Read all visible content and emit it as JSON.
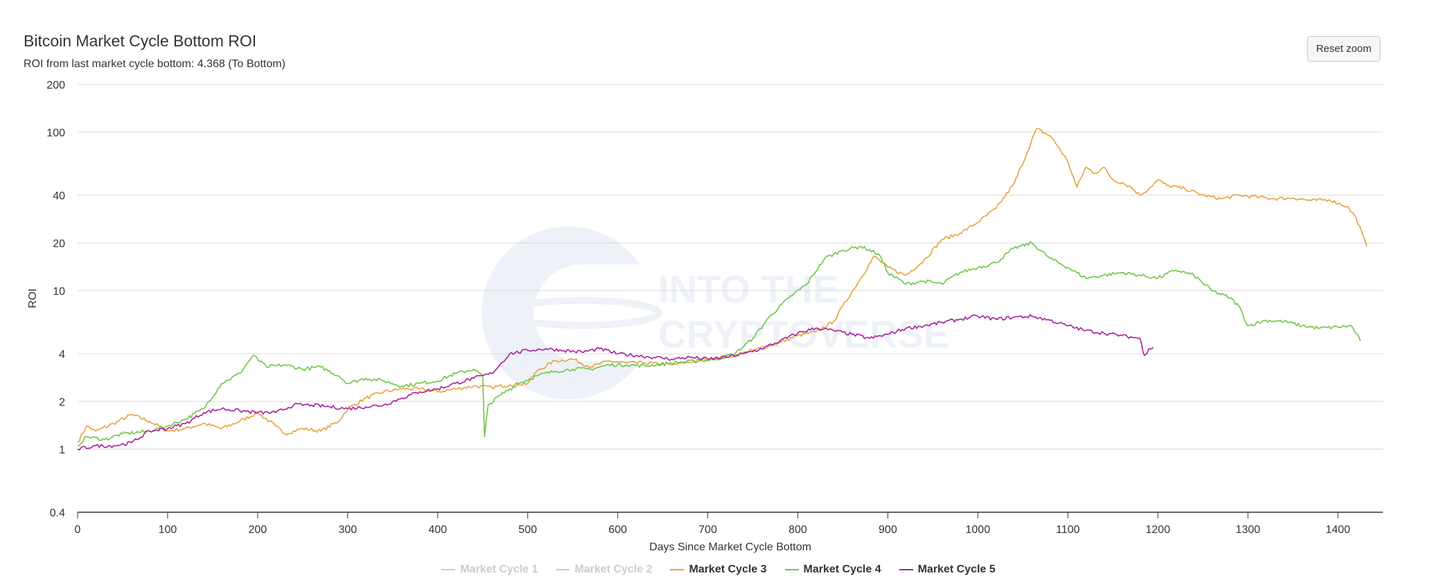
{
  "header": {
    "title": "Bitcoin Market Cycle Bottom ROI",
    "subtitle": "ROI from last market cycle bottom: 4.368 (To Bottom)",
    "reset_label": "Reset zoom"
  },
  "watermark": {
    "line1": "INTO THE",
    "line2": "CRYPTOVERSE"
  },
  "chart_data": {
    "type": "line",
    "title": "Bitcoin Market Cycle Bottom ROI",
    "subtitle": "ROI from last market cycle bottom: 4.368 (To Bottom)",
    "xlabel": "Days Since Market Cycle Bottom",
    "ylabel": "ROI",
    "xlim": [
      0,
      1450
    ],
    "ylim": [
      0.4,
      200
    ],
    "y_scale": "log",
    "grid": true,
    "legend_position": "bottom-center",
    "x_ticks": [
      0,
      100,
      200,
      300,
      400,
      500,
      600,
      700,
      800,
      900,
      1000,
      1100,
      1200,
      1300,
      1400
    ],
    "y_ticks": [
      0.4,
      1,
      2,
      4,
      10,
      20,
      40,
      100,
      200
    ],
    "y_tick_labels": [
      "0.4",
      "1",
      "2",
      "4",
      "10",
      "20",
      "40",
      "100",
      "200"
    ],
    "series": [
      {
        "name": "Market Cycle 1",
        "color": "#cccccc",
        "visible": false,
        "points": []
      },
      {
        "name": "Market Cycle 2",
        "color": "#cccccc",
        "visible": false,
        "points": []
      },
      {
        "name": "Market Cycle 3",
        "color": "#e8a13c",
        "visible": true,
        "points": [
          [
            0,
            1.1
          ],
          [
            10,
            1.4
          ],
          [
            20,
            1.3
          ],
          [
            40,
            1.45
          ],
          [
            60,
            1.65
          ],
          [
            80,
            1.5
          ],
          [
            100,
            1.3
          ],
          [
            120,
            1.35
          ],
          [
            140,
            1.45
          ],
          [
            160,
            1.35
          ],
          [
            180,
            1.5
          ],
          [
            200,
            1.7
          ],
          [
            220,
            1.4
          ],
          [
            230,
            1.25
          ],
          [
            250,
            1.35
          ],
          [
            270,
            1.3
          ],
          [
            290,
            1.5
          ],
          [
            300,
            1.8
          ],
          [
            320,
            2.1
          ],
          [
            340,
            2.3
          ],
          [
            360,
            2.4
          ],
          [
            380,
            2.4
          ],
          [
            400,
            2.3
          ],
          [
            420,
            2.4
          ],
          [
            440,
            2.5
          ],
          [
            460,
            2.45
          ],
          [
            480,
            2.55
          ],
          [
            500,
            2.6
          ],
          [
            510,
            3.1
          ],
          [
            530,
            3.6
          ],
          [
            550,
            3.7
          ],
          [
            570,
            3.3
          ],
          [
            590,
            3.6
          ],
          [
            610,
            3.5
          ],
          [
            630,
            3.5
          ],
          [
            660,
            3.4
          ],
          [
            700,
            3.7
          ],
          [
            730,
            3.9
          ],
          [
            750,
            4.2
          ],
          [
            780,
            4.7
          ],
          [
            800,
            5.2
          ],
          [
            820,
            5.5
          ],
          [
            840,
            6.4
          ],
          [
            850,
            8.0
          ],
          [
            870,
            12.0
          ],
          [
            885,
            16.5
          ],
          [
            900,
            14.0
          ],
          [
            920,
            12.5
          ],
          [
            940,
            15.5
          ],
          [
            960,
            21.0
          ],
          [
            980,
            23.0
          ],
          [
            1000,
            27.0
          ],
          [
            1020,
            33.0
          ],
          [
            1040,
            47.0
          ],
          [
            1055,
            75.0
          ],
          [
            1065,
            105.0
          ],
          [
            1080,
            95.0
          ],
          [
            1090,
            80.0
          ],
          [
            1100,
            65.0
          ],
          [
            1110,
            45.0
          ],
          [
            1120,
            60.0
          ],
          [
            1130,
            55.0
          ],
          [
            1140,
            60.0
          ],
          [
            1150,
            50.0
          ],
          [
            1160,
            48.0
          ],
          [
            1170,
            45.0
          ],
          [
            1180,
            40.0
          ],
          [
            1190,
            44.0
          ],
          [
            1200,
            50.0
          ],
          [
            1210,
            46.0
          ],
          [
            1230,
            44.0
          ],
          [
            1250,
            40.0
          ],
          [
            1270,
            38.0
          ],
          [
            1290,
            40.0
          ],
          [
            1310,
            39.0
          ],
          [
            1330,
            38.0
          ],
          [
            1350,
            38.5
          ],
          [
            1370,
            37.0
          ],
          [
            1390,
            37.5
          ],
          [
            1410,
            34.0
          ],
          [
            1420,
            29.0
          ],
          [
            1432,
            19.0
          ]
        ]
      },
      {
        "name": "Market Cycle 4",
        "color": "#6cc644",
        "visible": true,
        "points": [
          [
            0,
            1.05
          ],
          [
            10,
            1.2
          ],
          [
            30,
            1.15
          ],
          [
            50,
            1.25
          ],
          [
            80,
            1.3
          ],
          [
            100,
            1.4
          ],
          [
            120,
            1.55
          ],
          [
            140,
            1.8
          ],
          [
            160,
            2.6
          ],
          [
            180,
            3.0
          ],
          [
            195,
            3.9
          ],
          [
            210,
            3.3
          ],
          [
            230,
            3.4
          ],
          [
            250,
            3.2
          ],
          [
            270,
            3.3
          ],
          [
            290,
            2.9
          ],
          [
            300,
            2.6
          ],
          [
            320,
            2.8
          ],
          [
            340,
            2.7
          ],
          [
            360,
            2.5
          ],
          [
            380,
            2.6
          ],
          [
            400,
            2.7
          ],
          [
            420,
            3.0
          ],
          [
            440,
            3.2
          ],
          [
            450,
            2.9
          ],
          [
            452,
            1.2
          ],
          [
            456,
            1.9
          ],
          [
            470,
            2.2
          ],
          [
            490,
            2.6
          ],
          [
            510,
            2.9
          ],
          [
            530,
            3.1
          ],
          [
            550,
            3.2
          ],
          [
            570,
            3.2
          ],
          [
            590,
            3.4
          ],
          [
            610,
            3.4
          ],
          [
            630,
            3.35
          ],
          [
            660,
            3.5
          ],
          [
            690,
            3.6
          ],
          [
            710,
            3.7
          ],
          [
            730,
            4.0
          ],
          [
            750,
            5.0
          ],
          [
            770,
            7.0
          ],
          [
            790,
            9.0
          ],
          [
            810,
            11.0
          ],
          [
            830,
            16.0
          ],
          [
            850,
            18.0
          ],
          [
            870,
            19.0
          ],
          [
            890,
            17.0
          ],
          [
            900,
            13.0
          ],
          [
            920,
            11.0
          ],
          [
            940,
            11.5
          ],
          [
            960,
            11.0
          ],
          [
            980,
            13.0
          ],
          [
            1000,
            14.0
          ],
          [
            1020,
            15.0
          ],
          [
            1040,
            18.5
          ],
          [
            1060,
            20.0
          ],
          [
            1080,
            16.0
          ],
          [
            1100,
            14.0
          ],
          [
            1120,
            12.0
          ],
          [
            1140,
            12.5
          ],
          [
            1160,
            13.0
          ],
          [
            1180,
            12.5
          ],
          [
            1200,
            12.0
          ],
          [
            1220,
            13.5
          ],
          [
            1240,
            12.5
          ],
          [
            1260,
            10.0
          ],
          [
            1280,
            9.0
          ],
          [
            1290,
            8.0
          ],
          [
            1300,
            6.0
          ],
          [
            1320,
            6.5
          ],
          [
            1340,
            6.4
          ],
          [
            1360,
            6.0
          ],
          [
            1380,
            5.8
          ],
          [
            1400,
            5.9
          ],
          [
            1415,
            6.0
          ],
          [
            1425,
            4.8
          ]
        ]
      },
      {
        "name": "Market Cycle 5",
        "color": "#a51e9e",
        "visible": true,
        "points": [
          [
            0,
            1.0
          ],
          [
            20,
            1.05
          ],
          [
            40,
            1.05
          ],
          [
            60,
            1.1
          ],
          [
            80,
            1.3
          ],
          [
            100,
            1.35
          ],
          [
            120,
            1.45
          ],
          [
            140,
            1.7
          ],
          [
            160,
            1.8
          ],
          [
            180,
            1.75
          ],
          [
            200,
            1.7
          ],
          [
            220,
            1.7
          ],
          [
            240,
            1.9
          ],
          [
            260,
            1.9
          ],
          [
            280,
            1.85
          ],
          [
            300,
            1.8
          ],
          [
            320,
            1.85
          ],
          [
            340,
            1.9
          ],
          [
            360,
            2.1
          ],
          [
            380,
            2.3
          ],
          [
            400,
            2.4
          ],
          [
            420,
            2.6
          ],
          [
            440,
            2.8
          ],
          [
            460,
            3.0
          ],
          [
            480,
            4.0
          ],
          [
            500,
            4.2
          ],
          [
            520,
            4.3
          ],
          [
            540,
            4.2
          ],
          [
            560,
            4.1
          ],
          [
            580,
            4.3
          ],
          [
            600,
            4.0
          ],
          [
            620,
            3.9
          ],
          [
            640,
            3.8
          ],
          [
            660,
            3.7
          ],
          [
            680,
            3.8
          ],
          [
            700,
            3.7
          ],
          [
            720,
            3.8
          ],
          [
            740,
            4.0
          ],
          [
            760,
            4.3
          ],
          [
            780,
            4.8
          ],
          [
            800,
            5.4
          ],
          [
            820,
            5.8
          ],
          [
            840,
            5.6
          ],
          [
            860,
            5.3
          ],
          [
            880,
            5.0
          ],
          [
            900,
            5.3
          ],
          [
            920,
            5.8
          ],
          [
            940,
            6.0
          ],
          [
            960,
            6.3
          ],
          [
            980,
            6.6
          ],
          [
            1000,
            6.9
          ],
          [
            1020,
            6.6
          ],
          [
            1040,
            6.8
          ],
          [
            1060,
            6.9
          ],
          [
            1080,
            6.5
          ],
          [
            1100,
            6.0
          ],
          [
            1120,
            5.6
          ],
          [
            1140,
            5.4
          ],
          [
            1160,
            5.2
          ],
          [
            1180,
            5.0
          ],
          [
            1185,
            3.9
          ],
          [
            1190,
            4.3
          ],
          [
            1195,
            4.37
          ]
        ]
      }
    ]
  }
}
